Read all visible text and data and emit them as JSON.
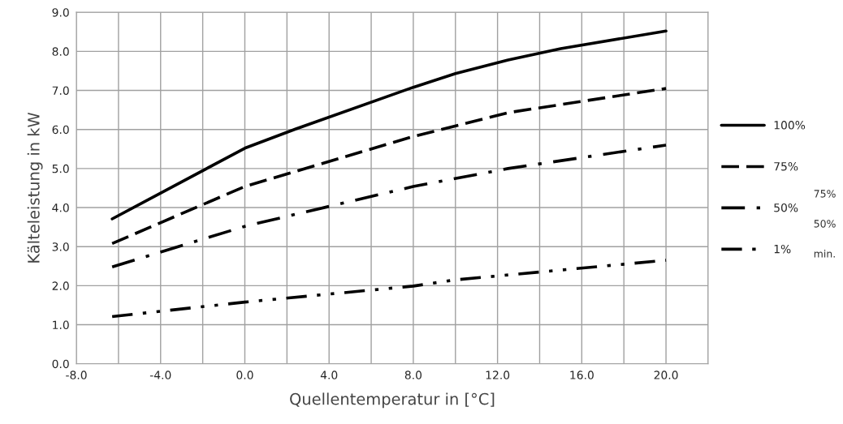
{
  "chart_data": {
    "type": "line",
    "xlabel": "Quellentemperatur in [°C]",
    "ylabel": "Kälteleistung in kW",
    "xlim": [
      -8,
      22
    ],
    "ylim": [
      0,
      9
    ],
    "xticks": [
      {
        "value": -8,
        "label": "-8.0"
      },
      {
        "value": -6,
        "label": null
      },
      {
        "value": -4,
        "label": "-4.0"
      },
      {
        "value": -2,
        "label": null
      },
      {
        "value": 0,
        "label": "0.0"
      },
      {
        "value": 2,
        "label": null
      },
      {
        "value": 4,
        "label": "4.0"
      },
      {
        "value": 6,
        "label": null
      },
      {
        "value": 8,
        "label": "8.0"
      },
      {
        "value": 10,
        "label": null
      },
      {
        "value": 12,
        "label": "12.0"
      },
      {
        "value": 14,
        "label": null
      },
      {
        "value": 16,
        "label": "16.0"
      },
      {
        "value": 18,
        "label": null
      },
      {
        "value": 20,
        "label": "20.0"
      },
      {
        "value": 22,
        "label": null
      }
    ],
    "yticks": [
      {
        "value": 0,
        "label": "0.0"
      },
      {
        "value": 1,
        "label": "1.0"
      },
      {
        "value": 2,
        "label": "2.0"
      },
      {
        "value": 3,
        "label": "3.0"
      },
      {
        "value": 4,
        "label": "4.0"
      },
      {
        "value": 5,
        "label": "5.0"
      },
      {
        "value": 6,
        "label": "6.0"
      },
      {
        "value": 7,
        "label": "7.0"
      },
      {
        "value": 8,
        "label": "8.0"
      },
      {
        "value": 9,
        "label": "9.0"
      }
    ],
    "grid": true,
    "legend": "right",
    "marker": "none",
    "series": [
      {
        "name": "100%",
        "color": "#000000",
        "line_style": "solid",
        "x": [
          -6.3,
          0,
          2.4,
          8,
          10,
          12.5,
          15,
          20
        ],
        "values": [
          3.71,
          5.52,
          6.01,
          7.08,
          7.43,
          7.78,
          8.07,
          8.52
        ]
      },
      {
        "name": "75%",
        "color": "#000000",
        "line_style": "dashed",
        "x": [
          -6.3,
          0,
          8,
          12.5,
          20
        ],
        "values": [
          3.08,
          4.54,
          5.82,
          6.43,
          7.05
        ]
      },
      {
        "name": "50%",
        "color": "#000000",
        "line_style": "dashdot",
        "x": [
          -6.3,
          0,
          8,
          12.5,
          20
        ],
        "values": [
          2.48,
          3.52,
          4.54,
          5.0,
          5.6
        ]
      },
      {
        "name": "1%",
        "color": "#000000",
        "line_style": "dashdotdot",
        "x": [
          -6.3,
          0,
          8,
          10,
          20
        ],
        "values": [
          1.21,
          1.58,
          1.99,
          2.15,
          2.65
        ]
      }
    ],
    "annotations": [
      "75%",
      "50%",
      "min."
    ]
  }
}
